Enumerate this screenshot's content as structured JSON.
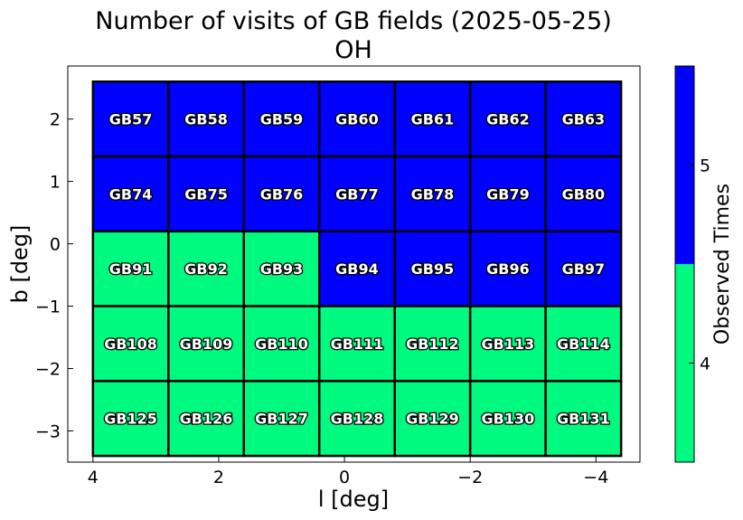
{
  "chart_data": {
    "type": "heatmap",
    "title": "Number of visits of GB fields (2025-05-25)",
    "subtitle": "OH",
    "xlabel": "l [deg]",
    "ylabel": "b [deg]",
    "xlim": [
      4.4,
      -4.7
    ],
    "ylim": [
      -3.5,
      2.85
    ],
    "x_ticks": [
      4,
      2,
      0,
      -2,
      -4
    ],
    "x_tick_labels": [
      "4",
      "2",
      "0",
      "−2",
      "−4"
    ],
    "y_ticks": [
      2,
      1,
      0,
      -1,
      -2,
      -3
    ],
    "y_tick_labels": [
      "2",
      "1",
      "0",
      "−1",
      "−2",
      "−3"
    ],
    "grid": false,
    "cell_width_deg": 1.2,
    "cell_height_deg": 1.2,
    "column_centers_l": [
      3.4,
      2.2,
      1.0,
      -0.2,
      -1.4,
      -2.6,
      -3.8
    ],
    "row_centers_b": [
      2.0,
      0.8,
      -0.4,
      -1.6,
      -2.8
    ],
    "cells": [
      [
        {
          "label": "GB57",
          "visits": 5
        },
        {
          "label": "GB58",
          "visits": 5
        },
        {
          "label": "GB59",
          "visits": 5
        },
        {
          "label": "GB60",
          "visits": 5
        },
        {
          "label": "GB61",
          "visits": 5
        },
        {
          "label": "GB62",
          "visits": 5
        },
        {
          "label": "GB63",
          "visits": 5
        }
      ],
      [
        {
          "label": "GB74",
          "visits": 5
        },
        {
          "label": "GB75",
          "visits": 5
        },
        {
          "label": "GB76",
          "visits": 5
        },
        {
          "label": "GB77",
          "visits": 5
        },
        {
          "label": "GB78",
          "visits": 5
        },
        {
          "label": "GB79",
          "visits": 5
        },
        {
          "label": "GB80",
          "visits": 5
        }
      ],
      [
        {
          "label": "GB91",
          "visits": 4
        },
        {
          "label": "GB92",
          "visits": 4
        },
        {
          "label": "GB93",
          "visits": 4
        },
        {
          "label": "GB94",
          "visits": 5
        },
        {
          "label": "GB95",
          "visits": 5
        },
        {
          "label": "GB96",
          "visits": 5
        },
        {
          "label": "GB97",
          "visits": 5
        }
      ],
      [
        {
          "label": "GB108",
          "visits": 4
        },
        {
          "label": "GB109",
          "visits": 4
        },
        {
          "label": "GB110",
          "visits": 4
        },
        {
          "label": "GB111",
          "visits": 4
        },
        {
          "label": "GB112",
          "visits": 4
        },
        {
          "label": "GB113",
          "visits": 4
        },
        {
          "label": "GB114",
          "visits": 4
        }
      ],
      [
        {
          "label": "GB125",
          "visits": 4
        },
        {
          "label": "GB126",
          "visits": 4
        },
        {
          "label": "GB127",
          "visits": 4
        },
        {
          "label": "GB128",
          "visits": 4
        },
        {
          "label": "GB129",
          "visits": 4
        },
        {
          "label": "GB130",
          "visits": 4
        },
        {
          "label": "GB131",
          "visits": 4
        }
      ]
    ],
    "colorbar": {
      "label": "Observed Times",
      "levels": [
        4,
        5
      ],
      "tick_labels": [
        "4",
        "5"
      ],
      "colors": {
        "4": "#00fa7f",
        "5": "#0000ff"
      }
    }
  }
}
